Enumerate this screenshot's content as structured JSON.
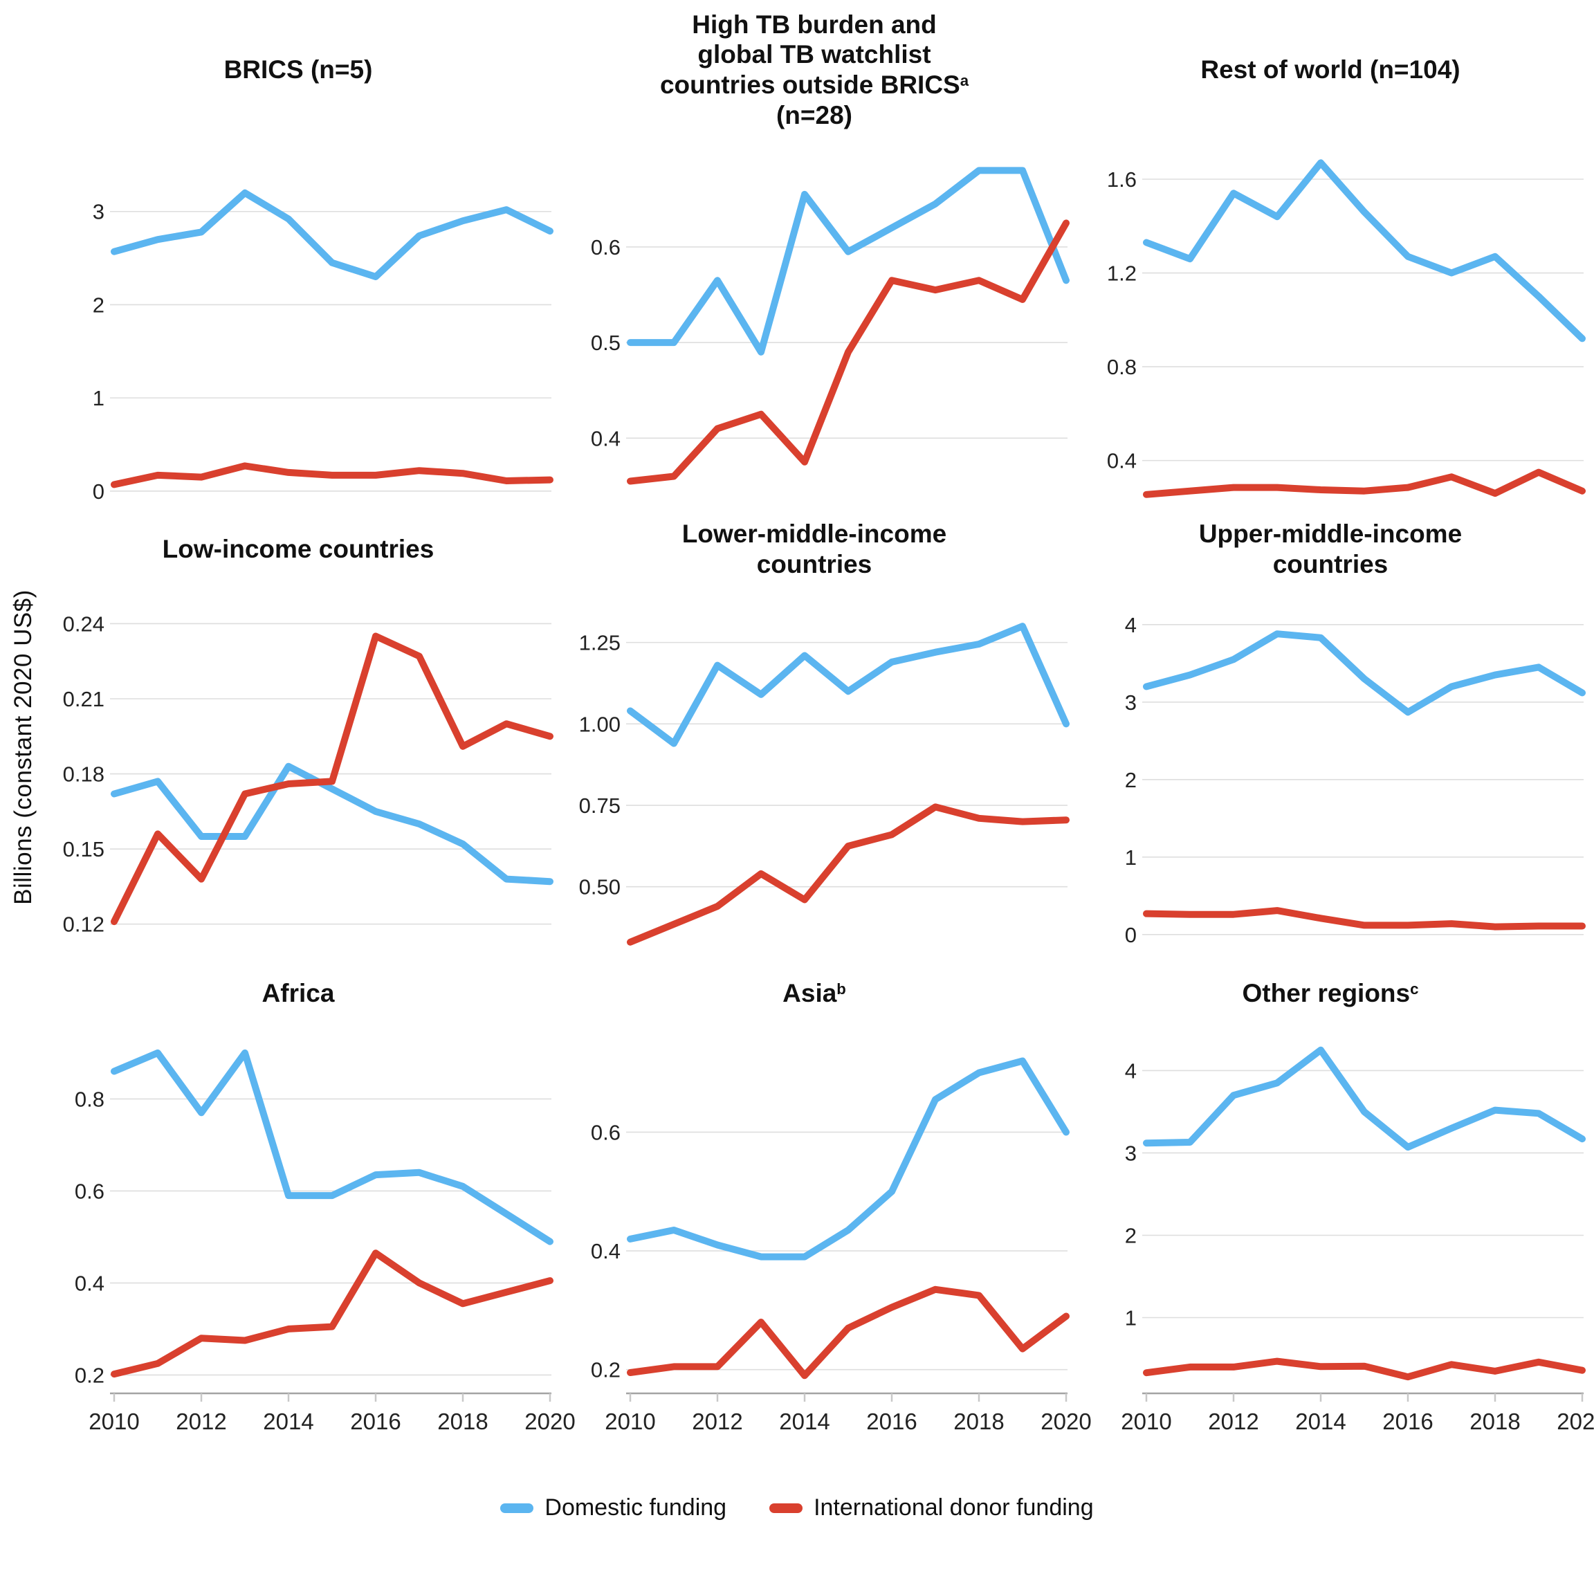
{
  "figure": {
    "y_axis_label": "Billions (constant 2020 US$)",
    "legend": [
      {
        "label": "Domestic funding",
        "color": "#5bb5f0"
      },
      {
        "label": "International donor funding",
        "color": "#d9402e"
      }
    ],
    "styles": {
      "gridline_color": "#dedede",
      "axis_color": "#a3a3a3",
      "tick_mark_color": "#c8c8c8",
      "line_width": 10
    },
    "x_years": [
      2010,
      2011,
      2012,
      2013,
      2014,
      2015,
      2016,
      2017,
      2018,
      2019,
      2020
    ],
    "x_tick_labels": [
      "2010",
      "2012",
      "2014",
      "2016",
      "2018",
      "2020"
    ]
  },
  "chart_data": [
    {
      "key": "brics",
      "type": "line",
      "title_lines": [
        {
          "text": "BRICS (n=5)"
        }
      ],
      "row": 1,
      "show_x_axis": false,
      "ylim": [
        -0.15,
        3.8
      ],
      "y_ticks": [
        {
          "v": 3,
          "label": "3"
        },
        {
          "v": 2,
          "label": "2"
        },
        {
          "v": 1,
          "label": "1"
        },
        {
          "v": 0,
          "label": "0"
        }
      ],
      "series": [
        {
          "name": "Domestic funding",
          "values": [
            2.57,
            2.7,
            2.78,
            3.2,
            2.92,
            2.45,
            2.3,
            2.74,
            2.9,
            3.02,
            2.79
          ]
        },
        {
          "name": "International donor funding",
          "values": [
            0.07,
            0.17,
            0.15,
            0.27,
            0.2,
            0.17,
            0.17,
            0.22,
            0.19,
            0.11,
            0.12
          ]
        }
      ]
    },
    {
      "key": "high-tb-watchlist",
      "type": "line",
      "title_lines": [
        {
          "text": "High TB burden and"
        },
        {
          "text": "global TB watchlist"
        },
        {
          "text": "countries outside BRICS",
          "sup": "a"
        },
        {
          "text": "(n=28)"
        }
      ],
      "row": 1,
      "show_x_axis": false,
      "ylim": [
        0.33,
        0.715
      ],
      "y_ticks": [
        {
          "v": 0.6,
          "label": "0.6"
        },
        {
          "v": 0.5,
          "label": "0.5"
        },
        {
          "v": 0.4,
          "label": "0.4"
        }
      ],
      "series": [
        {
          "name": "Domestic funding",
          "values": [
            0.5,
            0.5,
            0.565,
            0.49,
            0.655,
            0.595,
            0.62,
            0.645,
            0.68,
            0.68,
            0.565
          ]
        },
        {
          "name": "International donor funding",
          "values": [
            0.355,
            0.36,
            0.41,
            0.425,
            0.375,
            0.49,
            0.565,
            0.555,
            0.565,
            0.545,
            0.625
          ]
        }
      ]
    },
    {
      "key": "rest-of-world",
      "type": "line",
      "title_lines": [
        {
          "text": "Rest of world (n=104)"
        }
      ],
      "row": 1,
      "show_x_axis": false,
      "ylim": [
        0.21,
        1.78
      ],
      "y_ticks": [
        {
          "v": 1.6,
          "label": "1.6"
        },
        {
          "v": 1.2,
          "label": "1.2"
        },
        {
          "v": 0.8,
          "label": "0.8"
        },
        {
          "v": 0.4,
          "label": "0.4"
        }
      ],
      "series": [
        {
          "name": "Domestic funding",
          "values": [
            1.33,
            1.26,
            1.54,
            1.44,
            1.67,
            1.46,
            1.27,
            1.2,
            1.27,
            1.1,
            0.92
          ]
        },
        {
          "name": "International donor funding",
          "values": [
            0.255,
            0.27,
            0.285,
            0.285,
            0.275,
            0.27,
            0.285,
            0.33,
            0.26,
            0.35,
            0.27
          ]
        }
      ]
    },
    {
      "key": "low-income",
      "type": "line",
      "title_lines": [
        {
          "text": "Low-income countries"
        }
      ],
      "row": 2,
      "show_x_axis": false,
      "ylim": [
        0.105,
        0.252
      ],
      "y_ticks": [
        {
          "v": 0.24,
          "label": "0.24"
        },
        {
          "v": 0.21,
          "label": "0.21"
        },
        {
          "v": 0.18,
          "label": "0.18"
        },
        {
          "v": 0.15,
          "label": "0.15"
        },
        {
          "v": 0.12,
          "label": "0.12"
        }
      ],
      "series": [
        {
          "name": "Domestic funding",
          "values": [
            0.172,
            0.177,
            0.155,
            0.155,
            0.183,
            0.174,
            0.165,
            0.16,
            0.152,
            0.138,
            0.137
          ]
        },
        {
          "name": "International donor funding",
          "values": [
            0.121,
            0.156,
            0.138,
            0.172,
            0.176,
            0.177,
            0.235,
            0.227,
            0.191,
            0.2,
            0.195
          ]
        }
      ]
    },
    {
      "key": "lower-middle-income",
      "type": "line",
      "title_lines": [
        {
          "text": "Lower-middle-income"
        },
        {
          "text": "countries"
        }
      ],
      "row": 2,
      "show_x_axis": false,
      "ylim": [
        0.27,
        1.4
      ],
      "y_ticks": [
        {
          "v": 1.25,
          "label": "1.25"
        },
        {
          "v": 1.0,
          "label": "1.00"
        },
        {
          "v": 0.75,
          "label": "0.75"
        },
        {
          "v": 0.5,
          "label": "0.50"
        }
      ],
      "series": [
        {
          "name": "Domestic funding",
          "values": [
            1.04,
            0.94,
            1.18,
            1.09,
            1.21,
            1.1,
            1.19,
            1.22,
            1.245,
            1.3,
            1.0
          ]
        },
        {
          "name": "International donor funding",
          "values": [
            0.33,
            0.385,
            0.44,
            0.54,
            0.46,
            0.625,
            0.66,
            0.745,
            0.71,
            0.7,
            0.705
          ]
        }
      ]
    },
    {
      "key": "upper-middle-income",
      "type": "line",
      "title_lines": [
        {
          "text": "Upper-middle-income"
        },
        {
          "text": "countries"
        }
      ],
      "row": 2,
      "show_x_axis": false,
      "ylim": [
        -0.35,
        4.4
      ],
      "y_ticks": [
        {
          "v": 4,
          "label": "4"
        },
        {
          "v": 3,
          "label": "3"
        },
        {
          "v": 2,
          "label": "2"
        },
        {
          "v": 1,
          "label": "1"
        },
        {
          "v": 0,
          "label": "0"
        }
      ],
      "series": [
        {
          "name": "Domestic funding",
          "values": [
            3.2,
            3.35,
            3.55,
            3.88,
            3.83,
            3.3,
            2.87,
            3.2,
            3.35,
            3.45,
            3.12
          ]
        },
        {
          "name": "International donor funding",
          "values": [
            0.27,
            0.26,
            0.26,
            0.31,
            0.21,
            0.12,
            0.12,
            0.14,
            0.1,
            0.11,
            0.11
          ]
        }
      ]
    },
    {
      "key": "africa",
      "type": "line",
      "title_lines": [
        {
          "text": "Africa"
        }
      ],
      "row": 3,
      "show_x_axis": true,
      "ylim": [
        0.16,
        0.96
      ],
      "y_ticks": [
        {
          "v": 0.8,
          "label": "0.8"
        },
        {
          "v": 0.6,
          "label": "0.6"
        },
        {
          "v": 0.4,
          "label": "0.4"
        },
        {
          "v": 0.2,
          "label": "0.2"
        }
      ],
      "series": [
        {
          "name": "Domestic funding",
          "values": [
            0.86,
            0.9,
            0.77,
            0.9,
            0.59,
            0.59,
            0.635,
            0.64,
            0.61,
            0.55,
            0.49
          ]
        },
        {
          "name": "International donor funding",
          "values": [
            0.202,
            0.225,
            0.28,
            0.275,
            0.3,
            0.305,
            0.465,
            0.4,
            0.355,
            0.38,
            0.405
          ]
        }
      ]
    },
    {
      "key": "asia",
      "type": "line",
      "title_lines": [
        {
          "text": "Asia",
          "sup": "b"
        }
      ],
      "row": 3,
      "show_x_axis": true,
      "ylim": [
        0.16,
        0.78
      ],
      "y_ticks": [
        {
          "v": 0.6,
          "label": "0.6"
        },
        {
          "v": 0.4,
          "label": "0.4"
        },
        {
          "v": 0.2,
          "label": "0.2"
        }
      ],
      "series": [
        {
          "name": "Domestic funding",
          "values": [
            0.42,
            0.435,
            0.41,
            0.39,
            0.39,
            0.435,
            0.5,
            0.655,
            0.7,
            0.72,
            0.6
          ]
        },
        {
          "name": "International donor funding",
          "values": [
            0.195,
            0.205,
            0.205,
            0.28,
            0.19,
            0.27,
            0.305,
            0.335,
            0.325,
            0.235,
            0.29
          ]
        }
      ]
    },
    {
      "key": "other-regions",
      "type": "line",
      "title_lines": [
        {
          "text": "Other regions",
          "sup": "c"
        }
      ],
      "row": 3,
      "show_x_axis": true,
      "ylim": [
        0.08,
        4.55
      ],
      "y_ticks": [
        {
          "v": 4,
          "label": "4"
        },
        {
          "v": 3,
          "label": "3"
        },
        {
          "v": 2,
          "label": "2"
        },
        {
          "v": 1,
          "label": "1"
        }
      ],
      "series": [
        {
          "name": "Domestic funding",
          "values": [
            3.12,
            3.13,
            3.7,
            3.85,
            4.25,
            3.5,
            3.07,
            3.3,
            3.52,
            3.48,
            3.17
          ]
        },
        {
          "name": "International donor funding",
          "values": [
            0.33,
            0.4,
            0.4,
            0.47,
            0.405,
            0.41,
            0.28,
            0.43,
            0.35,
            0.46,
            0.36
          ]
        }
      ]
    }
  ]
}
